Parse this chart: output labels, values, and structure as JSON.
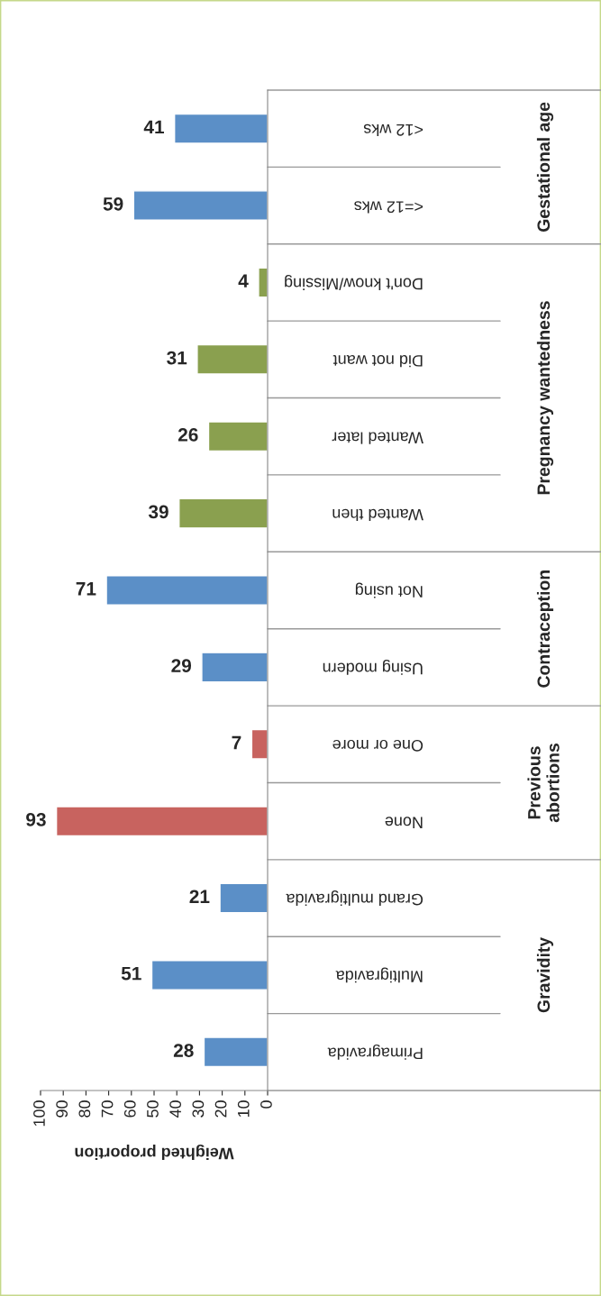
{
  "chart_data": {
    "type": "bar",
    "orientation": "horizontal",
    "xlabel": "Weighted proportion",
    "categories": [
      "<12 wks",
      "<=12 wks",
      "Don't know/Missing",
      "Did not want",
      "Wanted later",
      "Wanted then",
      "Not using",
      "Using modern",
      "One or more",
      "None",
      "Grand multigravida",
      "Multigravida",
      "Primagravida"
    ],
    "values": [
      41,
      59,
      4,
      31,
      26,
      39,
      71,
      29,
      7,
      93,
      21,
      51,
      28
    ],
    "colors": [
      "#5b8fc7",
      "#5b8fc7",
      "#8aa04f",
      "#8aa04f",
      "#8aa04f",
      "#8aa04f",
      "#5b8fc7",
      "#5b8fc7",
      "#c8635f",
      "#c8635f",
      "#5b8fc7",
      "#5b8fc7",
      "#5b8fc7"
    ],
    "xlim": [
      100,
      0
    ],
    "xticks": [
      0,
      10,
      20,
      30,
      40,
      50,
      60,
      70,
      80,
      90,
      100
    ],
    "data_labels": true,
    "grid": false,
    "legend": false,
    "annotations": [
      "Gestational age",
      "Pregnancy wantedness",
      "Contraception",
      "Previous\nabortions",
      "Gravidity"
    ]
  }
}
